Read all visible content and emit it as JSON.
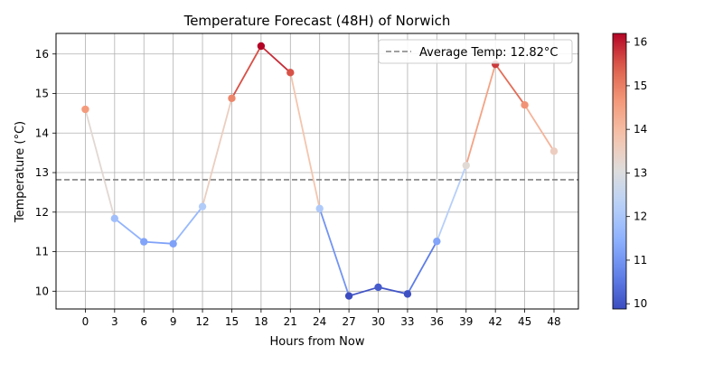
{
  "chart_data": {
    "type": "line",
    "title": "Temperature Forecast (48H) of Norwich",
    "xlabel": "Hours from Now",
    "ylabel": "Temperature (°C)",
    "x": [
      0,
      3,
      6,
      9,
      12,
      15,
      18,
      21,
      24,
      27,
      30,
      33,
      36,
      39,
      42,
      45,
      48
    ],
    "y": [
      14.6,
      11.84,
      11.25,
      11.2,
      12.14,
      14.88,
      16.2,
      15.53,
      12.09,
      9.88,
      10.1,
      9.93,
      11.26,
      13.18,
      15.74,
      14.71,
      13.54
    ],
    "xlim": [
      -3,
      50.5
    ],
    "ylim": [
      9.55,
      16.52
    ],
    "xticks": [
      "0",
      "3",
      "6",
      "9",
      "12",
      "15",
      "18",
      "21",
      "24",
      "27",
      "30",
      "33",
      "36",
      "39",
      "42",
      "45",
      "48"
    ],
    "yticks": [
      "10",
      "11",
      "12",
      "13",
      "14",
      "15",
      "16"
    ],
    "average_line": {
      "value": 12.82,
      "label": "Average Temp: 12.82°C",
      "color": "#808080",
      "style": "dashed"
    },
    "colorbar": {
      "min": 9.88,
      "max": 16.2,
      "ticks": [
        "10",
        "11",
        "12",
        "13",
        "14",
        "15",
        "16"
      ],
      "colormap": "coolwarm"
    },
    "legend_placement": "top-right",
    "grid": true
  }
}
